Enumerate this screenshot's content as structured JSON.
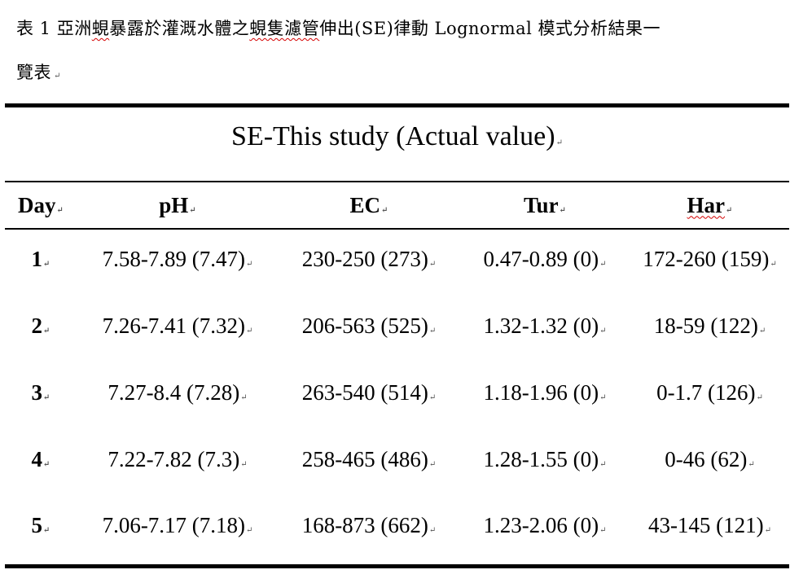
{
  "document": {
    "caption_line1_a": "表 1 亞洲",
    "caption_line1_b": "蜆",
    "caption_line1_c": "暴露於灌溉水體之",
    "caption_line1_d": "蜆隻濾管",
    "caption_line1_e": "伸出(SE)律動 Lognormal 模式分析結果一",
    "caption_line2": "覽表",
    "paragraph_mark": "↵"
  },
  "table": {
    "title": "SE-This study (Actual value)",
    "columns": [
      "Day",
      "pH",
      "EC",
      "Tur",
      "Har"
    ],
    "rows": [
      [
        "1",
        "7.58-7.89 (7.47)",
        "230-250 (273)",
        "0.47-0.89 (0)",
        "172-260 (159)"
      ],
      [
        "2",
        "7.26-7.41 (7.32)",
        "206-563 (525)",
        "1.32-1.32 (0)",
        "18-59 (122)"
      ],
      [
        "3",
        "7.27-8.4 (7.28)",
        "263-540 (514)",
        "1.18-1.96 (0)",
        "0-1.7 (126)"
      ],
      [
        "4",
        "7.22-7.82 (7.3)",
        "258-465 (486)",
        "1.28-1.55 (0)",
        "0-46 (62)"
      ],
      [
        "5",
        "7.06-7.17 (7.18)",
        "168-873 (662)",
        "1.23-2.06 (0)",
        "43-145 (121)"
      ]
    ]
  }
}
